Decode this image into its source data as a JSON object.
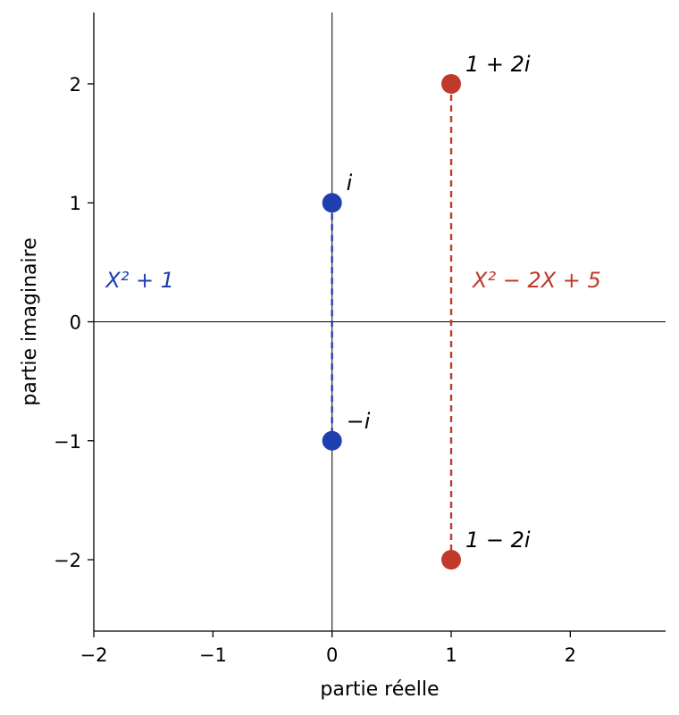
{
  "chart_data": {
    "type": "scatter",
    "xlabel": "partie réelle",
    "ylabel": "partie imaginaire",
    "xlim": [
      -2,
      2.8
    ],
    "ylim": [
      -2.6,
      2.6
    ],
    "xticks": [
      -2,
      -1,
      0,
      1,
      2
    ],
    "yticks": [
      -2,
      -1,
      0,
      1,
      2
    ],
    "xtick_labels": [
      "−2",
      "−1",
      "0",
      "1",
      "2"
    ],
    "ytick_labels": [
      "−2",
      "−1",
      "0",
      "1",
      "2"
    ],
    "grid": false,
    "reference_lines": {
      "x": 0,
      "y": 0
    },
    "series": [
      {
        "name": "X²+1",
        "color": "#1f3fb0",
        "points": [
          {
            "x": 0,
            "y": 1,
            "label": "i"
          },
          {
            "x": 0,
            "y": -1,
            "label": "−i"
          }
        ],
        "connector": "dashed"
      },
      {
        "name": "X²−2X+5",
        "color": "#c0392b",
        "points": [
          {
            "x": 1,
            "y": 2,
            "label": "1 + 2i"
          },
          {
            "x": 1,
            "y": -2,
            "label": "1 − 2i"
          }
        ],
        "connector": "dashed"
      }
    ],
    "annotations": [
      {
        "text": "X² + 1",
        "x": -1.9,
        "y": 0.35,
        "color": "#1f3fb0"
      },
      {
        "text": "X² − 2X + 5",
        "x": 1.18,
        "y": 0.35,
        "color": "#c0392b"
      }
    ]
  }
}
